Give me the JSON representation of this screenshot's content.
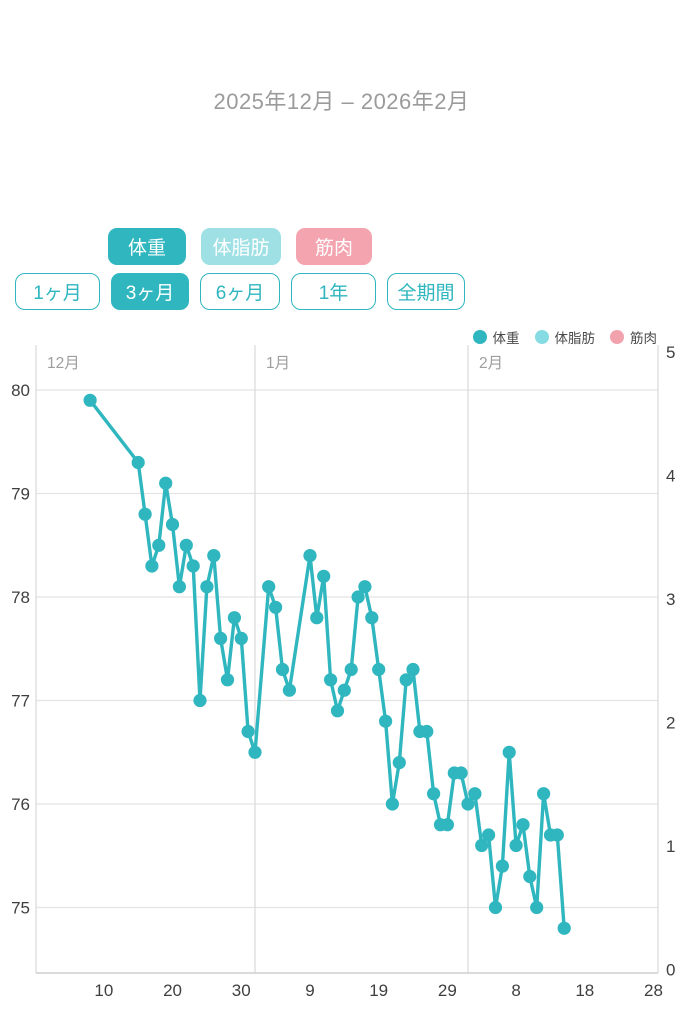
{
  "header": {
    "title": "2025年12月 – 2026年2月"
  },
  "colors": {
    "accent_teal": "#2fb6bf",
    "light_teal": "#9fe0e5",
    "pink": "#f3a4ae",
    "legend_teal": "#2fb6bf",
    "legend_light_teal": "#86dce2",
    "legend_pink": "#f2a2ad",
    "gridline": "#e4e4e4",
    "month_line": "#d9d9d9",
    "axis_line": "#cfcfcf",
    "axis_text": "#3f3f3f",
    "month_text": "#9e9e9e"
  },
  "series_buttons": [
    {
      "name": "series-button-weight",
      "label": "体重",
      "fill": "#2fb6bf",
      "text_color": "#ffffff"
    },
    {
      "name": "series-button-bodyfat",
      "label": "体脂肪",
      "fill": "#9fe0e5",
      "text_color": "#ffffff"
    },
    {
      "name": "series-button-muscle",
      "label": "筋肉",
      "fill": "#f3a4ae",
      "text_color": "#ffffff"
    }
  ],
  "range_buttons": [
    {
      "name": "range-button-1month",
      "label": "1ヶ月",
      "selected": false
    },
    {
      "name": "range-button-3months",
      "label": "3ヶ月",
      "selected": true
    },
    {
      "name": "range-button-6months",
      "label": "6ヶ月",
      "selected": false
    },
    {
      "name": "range-button-1year",
      "label": "1年",
      "selected": false
    },
    {
      "name": "range-button-all",
      "label": "全期間",
      "selected": false
    }
  ],
  "legend": [
    {
      "name": "legend-item-weight",
      "label": "体重",
      "color": "#2fb6bf"
    },
    {
      "name": "legend-item-bodyfat",
      "label": "体脂肪",
      "color": "#86dce2"
    },
    {
      "name": "legend-item-muscle",
      "label": "筋肉",
      "color": "#f2a2ad"
    }
  ],
  "chart_data": {
    "type": "line",
    "title": "2025年12月 – 2026年2月",
    "grid": true,
    "legend_position": "top-right",
    "x_axis": {
      "month_labels": [
        {
          "label": "12月",
          "at": "12-01"
        },
        {
          "label": "1月",
          "at": "01-01"
        },
        {
          "label": "2月",
          "at": "02-01"
        }
      ],
      "tick_dates": [
        "12-10",
        "12-20",
        "12-30",
        "01-09",
        "01-19",
        "01-29",
        "02-08",
        "02-18",
        "02-28"
      ],
      "tick_labels": [
        "10",
        "20",
        "30",
        "9",
        "19",
        "29",
        "8",
        "18",
        "28"
      ]
    },
    "y_axis_left": {
      "labels": [
        80,
        79,
        78,
        77,
        76,
        75
      ],
      "range": [
        74.3,
        80.4
      ]
    },
    "y_axis_right": {
      "labels": [
        5,
        4,
        3,
        2,
        1,
        0
      ],
      "range": [
        0,
        5
      ]
    },
    "series": [
      {
        "name": "体重",
        "color": "#2fb6bf",
        "axis": "left",
        "points": [
          [
            "12-08",
            79.9
          ],
          [
            "12-15",
            79.3
          ],
          [
            "12-16",
            78.8
          ],
          [
            "12-17",
            78.3
          ],
          [
            "12-18",
            78.5
          ],
          [
            "12-19",
            79.1
          ],
          [
            "12-20",
            78.7
          ],
          [
            "12-21",
            78.1
          ],
          [
            "12-22",
            78.5
          ],
          [
            "12-23",
            78.3
          ],
          [
            "12-24",
            77.0
          ],
          [
            "12-25",
            78.1
          ],
          [
            "12-26",
            78.4
          ],
          [
            "12-27",
            77.6
          ],
          [
            "12-28",
            77.2
          ],
          [
            "12-29",
            77.8
          ],
          [
            "12-30",
            77.6
          ],
          [
            "12-31",
            76.7
          ],
          [
            "01-01",
            76.5
          ],
          [
            "01-03",
            78.1
          ],
          [
            "01-04",
            77.9
          ],
          [
            "01-05",
            77.3
          ],
          [
            "01-06",
            77.1
          ],
          [
            "01-09",
            78.4
          ],
          [
            "01-10",
            77.8
          ],
          [
            "01-11",
            78.2
          ],
          [
            "01-12",
            77.2
          ],
          [
            "01-13",
            76.9
          ],
          [
            "01-14",
            77.1
          ],
          [
            "01-15",
            77.3
          ],
          [
            "01-16",
            78.0
          ],
          [
            "01-17",
            78.1
          ],
          [
            "01-18",
            77.8
          ],
          [
            "01-19",
            77.3
          ],
          [
            "01-20",
            76.8
          ],
          [
            "01-21",
            76.0
          ],
          [
            "01-22",
            76.4
          ],
          [
            "01-23",
            77.2
          ],
          [
            "01-24",
            77.3
          ],
          [
            "01-25",
            76.7
          ],
          [
            "01-26",
            76.7
          ],
          [
            "01-27",
            76.1
          ],
          [
            "01-28",
            75.8
          ],
          [
            "01-29",
            75.8
          ],
          [
            "01-30",
            76.3
          ],
          [
            "01-31",
            76.3
          ],
          [
            "02-01",
            76.0
          ],
          [
            "02-02",
            76.1
          ],
          [
            "02-03",
            75.6
          ],
          [
            "02-04",
            75.7
          ],
          [
            "02-05",
            75.0
          ],
          [
            "02-06",
            75.4
          ],
          [
            "02-07",
            76.5
          ],
          [
            "02-08",
            75.6
          ],
          [
            "02-09",
            75.8
          ],
          [
            "02-10",
            75.3
          ],
          [
            "02-11",
            75.0
          ],
          [
            "02-12",
            76.1
          ],
          [
            "02-13",
            75.7
          ],
          [
            "02-14",
            75.7
          ],
          [
            "02-15",
            74.8
          ]
        ]
      },
      {
        "name": "体脂肪",
        "color": "#86dce2",
        "axis": "right",
        "points": []
      },
      {
        "name": "筋肉",
        "color": "#f2a2ad",
        "axis": "right",
        "points": []
      }
    ]
  }
}
